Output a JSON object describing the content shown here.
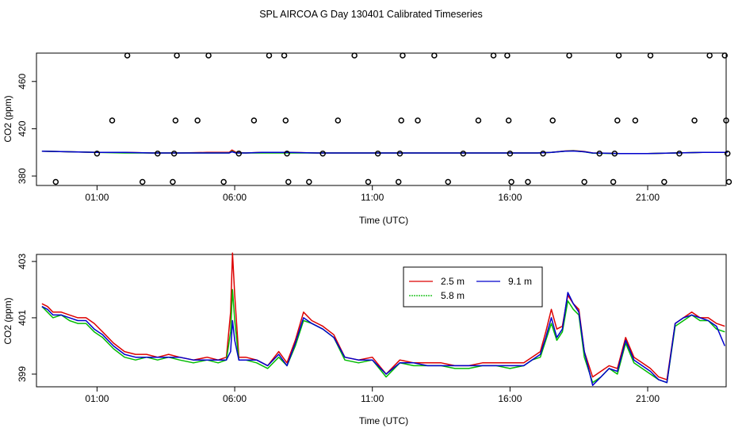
{
  "figure_title": "SPL AIRCOA G  Day 130401  Calibrated Timeseries",
  "chart_data": [
    {
      "type": "scatter",
      "panel": "top",
      "xlabel": "Time (UTC)",
      "ylabel": "CO2 (ppm)",
      "x_unit": "hours",
      "xlim": [
        -1.2,
        23.85
      ],
      "ylim": [
        372,
        484
      ],
      "x_ticks": [
        1,
        6,
        11,
        16,
        21
      ],
      "x_tick_labels": [
        "01:00",
        "06:00",
        "11:00",
        "16:00",
        "21:00"
      ],
      "y_ticks": [
        380,
        420,
        460
      ],
      "y_tick_labels": [
        "380",
        "420",
        "460"
      ],
      "grid": false,
      "legend": "none",
      "points": [
        [
          -0.5,
          375
        ],
        [
          1.0,
          399
        ],
        [
          1.55,
          427
        ],
        [
          2.1,
          482
        ],
        [
          2.65,
          375
        ],
        [
          3.2,
          399
        ],
        [
          3.75,
          375
        ],
        [
          3.8,
          399
        ],
        [
          3.85,
          427
        ],
        [
          3.9,
          482
        ],
        [
          4.65,
          427
        ],
        [
          5.05,
          482
        ],
        [
          5.6,
          375
        ],
        [
          6.15,
          399
        ],
        [
          6.7,
          427
        ],
        [
          7.25,
          482
        ],
        [
          7.8,
          482
        ],
        [
          7.85,
          427
        ],
        [
          7.95,
          375
        ],
        [
          7.9,
          399
        ],
        [
          8.7,
          375
        ],
        [
          9.2,
          399
        ],
        [
          9.75,
          427
        ],
        [
          10.35,
          482
        ],
        [
          10.85,
          375
        ],
        [
          11.2,
          399
        ],
        [
          11.95,
          375
        ],
        [
          12.0,
          399
        ],
        [
          12.05,
          427
        ],
        [
          12.1,
          482
        ],
        [
          12.65,
          427
        ],
        [
          13.25,
          482
        ],
        [
          13.75,
          375
        ],
        [
          14.3,
          399
        ],
        [
          14.85,
          427
        ],
        [
          15.4,
          482
        ],
        [
          15.9,
          482
        ],
        [
          15.95,
          427
        ],
        [
          16.0,
          399
        ],
        [
          16.05,
          375
        ],
        [
          16.65,
          375
        ],
        [
          17.2,
          399
        ],
        [
          17.55,
          427
        ],
        [
          18.15,
          482
        ],
        [
          18.7,
          375
        ],
        [
          19.25,
          399
        ],
        [
          19.75,
          375
        ],
        [
          19.8,
          399
        ],
        [
          19.9,
          427
        ],
        [
          19.95,
          482
        ],
        [
          20.55,
          427
        ],
        [
          21.1,
          482
        ],
        [
          21.6,
          375
        ],
        [
          22.15,
          399
        ],
        [
          22.7,
          427
        ],
        [
          23.25,
          482
        ],
        [
          23.8,
          482
        ],
        [
          23.85,
          427
        ],
        [
          23.9,
          399
        ],
        [
          23.95,
          375
        ]
      ],
      "line_series": [
        {
          "color": "#dd0000",
          "x": [
            -1.0,
            0,
            1,
            2,
            3,
            4,
            5,
            5.8,
            5.9,
            6.05,
            6.4,
            7,
            8,
            9,
            10,
            11,
            12,
            13,
            14,
            15,
            16,
            17,
            17.5,
            18,
            18.3,
            18.7,
            19,
            20,
            21,
            22,
            23,
            23.9
          ],
          "y": [
            401,
            400.5,
            400,
            400,
            399.5,
            399.5,
            400,
            400,
            402,
            400,
            399.5,
            400,
            400,
            399.5,
            399.5,
            399.5,
            399.5,
            399.5,
            399.5,
            399.5,
            399.5,
            399.5,
            400,
            401.2,
            401.5,
            400.8,
            399.5,
            399,
            399,
            399.5,
            400,
            400
          ]
        },
        {
          "color": "#00bb00",
          "x": [
            -1.0,
            0,
            1,
            2,
            3,
            4,
            5,
            5.8,
            5.9,
            6.05,
            6.4,
            7,
            8,
            9,
            10,
            11,
            12,
            13,
            14,
            15,
            16,
            17,
            17.5,
            18,
            18.3,
            18.7,
            19,
            20,
            21,
            22,
            23,
            23.9
          ],
          "y": [
            401,
            400.5,
            400,
            399.5,
            399.5,
            399.5,
            399.5,
            399.5,
            401,
            399.5,
            399.5,
            399.5,
            399.5,
            399.5,
            399.5,
            399.5,
            399.5,
            399.5,
            399.5,
            399.5,
            399.5,
            399.5,
            400,
            401,
            401.3,
            400.5,
            399.3,
            399,
            399,
            399.5,
            400,
            400
          ]
        },
        {
          "color": "#0000cc",
          "x": [
            -1.0,
            0,
            1,
            2,
            3,
            4,
            5,
            5.8,
            5.9,
            6.05,
            6.4,
            7,
            8,
            9,
            10,
            11,
            12,
            13,
            14,
            15,
            16,
            17,
            17.5,
            18,
            18.3,
            18.7,
            19,
            20,
            21,
            22,
            23,
            23.9
          ],
          "y": [
            401,
            400.5,
            400,
            400,
            399.5,
            399.5,
            399.5,
            399.5,
            400.5,
            399.5,
            399.5,
            400,
            400,
            399.5,
            399.5,
            399.5,
            399.5,
            399.5,
            399.5,
            399.5,
            399.5,
            399.5,
            400,
            401,
            401.2,
            400.5,
            399.5,
            399,
            399,
            399.5,
            400,
            400
          ]
        }
      ]
    },
    {
      "type": "line",
      "panel": "bottom",
      "xlabel": "Time (UTC)",
      "ylabel": "CO2 (ppm)",
      "x_unit": "hours",
      "xlim": [
        -1.2,
        23.85
      ],
      "ylim": [
        398.55,
        403.25
      ],
      "x_ticks": [
        1,
        6,
        11,
        16,
        21
      ],
      "x_tick_labels": [
        "01:00",
        "06:00",
        "11:00",
        "16:00",
        "21:00"
      ],
      "y_ticks": [
        399,
        401,
        403
      ],
      "y_tick_labels": [
        "399",
        "401",
        "403"
      ],
      "grid": false,
      "legend": "top-center",
      "series": [
        {
          "name": "2.5 m",
          "color": "#dd0000",
          "x": [
            -1.0,
            -0.8,
            -0.6,
            -0.3,
            0.0,
            0.3,
            0.6,
            0.9,
            1.2,
            1.6,
            2.0,
            2.4,
            2.8,
            3.2,
            3.6,
            4.0,
            4.5,
            5.0,
            5.4,
            5.7,
            5.85,
            5.92,
            6.0,
            6.15,
            6.4,
            6.8,
            7.2,
            7.6,
            7.9,
            8.2,
            8.5,
            8.8,
            9.2,
            9.6,
            10.0,
            10.5,
            11.0,
            11.5,
            12.0,
            12.5,
            13.0,
            13.5,
            14.0,
            14.5,
            15.0,
            15.5,
            16.0,
            16.5,
            16.8,
            17.1,
            17.3,
            17.5,
            17.7,
            17.9,
            18.1,
            18.3,
            18.5,
            18.7,
            19.0,
            19.3,
            19.6,
            19.9,
            20.2,
            20.5,
            20.8,
            21.1,
            21.4,
            21.7,
            22.0,
            22.3,
            22.6,
            22.9,
            23.2,
            23.5,
            23.8
          ],
          "y": [
            401.5,
            401.4,
            401.2,
            401.2,
            401.1,
            401.0,
            401.0,
            400.8,
            400.5,
            400.1,
            399.8,
            399.7,
            399.7,
            399.6,
            399.7,
            399.6,
            399.5,
            399.6,
            399.5,
            399.6,
            401.2,
            403.3,
            401.8,
            399.6,
            399.6,
            399.5,
            399.3,
            399.8,
            399.4,
            400.2,
            401.2,
            400.9,
            400.7,
            400.4,
            399.6,
            399.5,
            399.6,
            399.0,
            399.5,
            399.4,
            399.4,
            399.4,
            399.3,
            399.3,
            399.4,
            399.4,
            399.4,
            399.4,
            399.6,
            399.8,
            400.5,
            401.3,
            400.6,
            400.7,
            401.8,
            401.5,
            401.3,
            399.8,
            398.9,
            399.1,
            399.3,
            399.2,
            400.3,
            399.6,
            399.4,
            399.2,
            398.9,
            398.8,
            400.8,
            401.0,
            401.2,
            401.0,
            401.0,
            400.8,
            400.7
          ]
        },
        {
          "name": "5.8 m",
          "color": "#00bb00",
          "x": [
            -1.0,
            -0.8,
            -0.6,
            -0.3,
            0.0,
            0.3,
            0.6,
            0.9,
            1.2,
            1.6,
            2.0,
            2.4,
            2.8,
            3.2,
            3.6,
            4.0,
            4.5,
            5.0,
            5.4,
            5.7,
            5.85,
            5.92,
            6.0,
            6.15,
            6.4,
            6.8,
            7.2,
            7.6,
            7.9,
            8.2,
            8.5,
            8.8,
            9.2,
            9.6,
            10.0,
            10.5,
            11.0,
            11.5,
            12.0,
            12.5,
            13.0,
            13.5,
            14.0,
            14.5,
            15.0,
            15.5,
            16.0,
            16.5,
            16.8,
            17.1,
            17.3,
            17.5,
            17.7,
            17.9,
            18.1,
            18.3,
            18.5,
            18.7,
            19.0,
            19.3,
            19.6,
            19.9,
            20.2,
            20.5,
            20.8,
            21.1,
            21.4,
            21.7,
            22.0,
            22.3,
            22.6,
            22.9,
            23.2,
            23.5,
            23.8
          ],
          "y": [
            401.4,
            401.2,
            401.0,
            401.1,
            400.9,
            400.8,
            400.8,
            400.5,
            400.3,
            399.9,
            399.6,
            399.5,
            399.6,
            399.5,
            399.6,
            399.5,
            399.4,
            399.5,
            399.4,
            399.5,
            400.5,
            402.0,
            400.9,
            399.5,
            399.5,
            399.4,
            399.2,
            399.6,
            399.3,
            400.0,
            400.9,
            400.8,
            400.6,
            400.3,
            399.5,
            399.4,
            399.5,
            398.9,
            399.4,
            399.3,
            399.3,
            399.3,
            399.2,
            399.2,
            399.3,
            399.3,
            399.2,
            399.3,
            399.5,
            399.6,
            400.2,
            400.8,
            400.2,
            400.5,
            401.6,
            401.3,
            401.1,
            399.6,
            398.7,
            398.9,
            399.2,
            399.0,
            400.1,
            399.4,
            399.2,
            399.0,
            398.8,
            398.7,
            400.7,
            400.9,
            401.1,
            400.9,
            400.9,
            400.6,
            400.5
          ]
        },
        {
          "name": "9.1 m",
          "color": "#0000cc",
          "x": [
            -1.0,
            -0.8,
            -0.6,
            -0.3,
            0.0,
            0.3,
            0.6,
            0.9,
            1.2,
            1.6,
            2.0,
            2.4,
            2.8,
            3.2,
            3.6,
            4.0,
            4.5,
            5.0,
            5.4,
            5.7,
            5.85,
            5.92,
            6.0,
            6.15,
            6.4,
            6.8,
            7.2,
            7.6,
            7.9,
            8.2,
            8.5,
            8.8,
            9.2,
            9.6,
            10.0,
            10.5,
            11.0,
            11.5,
            12.0,
            12.5,
            13.0,
            13.5,
            14.0,
            14.5,
            15.0,
            15.5,
            16.0,
            16.5,
            16.8,
            17.1,
            17.3,
            17.5,
            17.7,
            17.9,
            18.1,
            18.3,
            18.5,
            18.7,
            19.0,
            19.3,
            19.6,
            19.9,
            20.2,
            20.5,
            20.8,
            21.1,
            21.4,
            21.7,
            22.0,
            22.3,
            22.6,
            22.9,
            23.2,
            23.5,
            23.8
          ],
          "y": [
            401.4,
            401.3,
            401.1,
            401.1,
            401.0,
            400.9,
            400.9,
            400.6,
            400.4,
            400.0,
            399.7,
            399.6,
            399.6,
            399.6,
            399.6,
            399.6,
            399.5,
            399.5,
            399.5,
            399.5,
            399.8,
            400.9,
            400.2,
            399.5,
            399.5,
            399.5,
            399.3,
            399.7,
            399.3,
            400.1,
            401.0,
            400.8,
            400.6,
            400.3,
            399.6,
            399.5,
            399.5,
            399.0,
            399.4,
            399.4,
            399.3,
            399.3,
            399.3,
            399.3,
            399.3,
            399.3,
            399.3,
            399.3,
            399.5,
            399.7,
            400.3,
            401.0,
            400.3,
            400.6,
            401.9,
            401.5,
            401.2,
            399.8,
            398.6,
            398.9,
            399.2,
            399.1,
            400.2,
            399.5,
            399.3,
            399.1,
            398.8,
            398.7,
            400.8,
            401.0,
            401.1,
            401.0,
            400.9,
            400.7,
            400.0
          ]
        }
      ]
    }
  ]
}
